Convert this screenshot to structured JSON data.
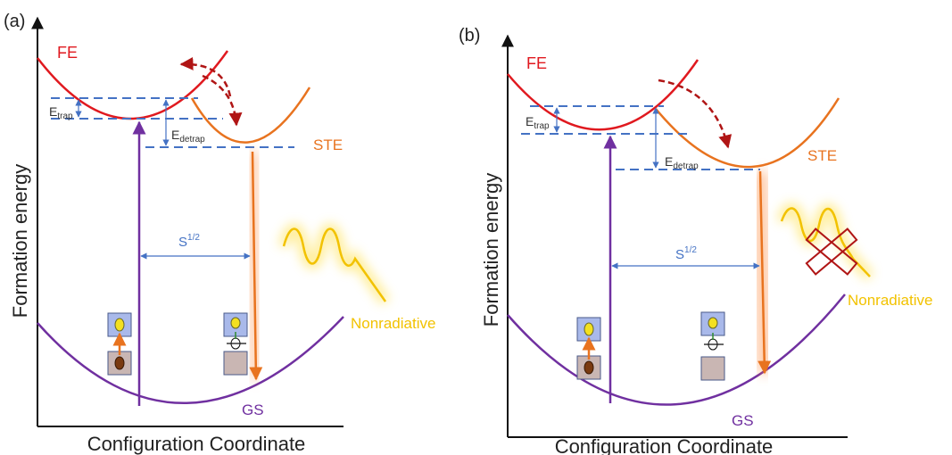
{
  "panels": [
    {
      "id": "a",
      "panel_label": "(a)",
      "fe_label": "FE",
      "ste_label": "STE",
      "gs_label": "GS",
      "etrap_main": "E",
      "etrap_sub": "trap",
      "edetrap_main": "E",
      "edetrap_sub": "detrap",
      "s_main": "S",
      "s_sup": "1/2",
      "nonradiative_label": "Nonradiative",
      "ylabel": "Formation  energy",
      "xlabel": "Configuration  Coordinate"
    },
    {
      "id": "b",
      "panel_label": "(b)",
      "fe_label": "FE",
      "ste_label": "STE",
      "gs_label": "GS",
      "etrap_main": "E",
      "etrap_sub": "trap",
      "edetrap_main": "E",
      "edetrap_sub": "detrap",
      "s_main": "S",
      "s_sup": "1/2",
      "nonradiative_label": "Nonradiative",
      "ylabel": "Formation  energy",
      "xlabel": "Configuration  Coordinate"
    }
  ],
  "colors": {
    "fe": "#e0191f",
    "ste": "#e8731f",
    "gs": "#7030a0",
    "dash": "#4472c4",
    "arrow_dark": "#b01515",
    "nonrad": "#f2c200",
    "text": "#222222"
  }
}
